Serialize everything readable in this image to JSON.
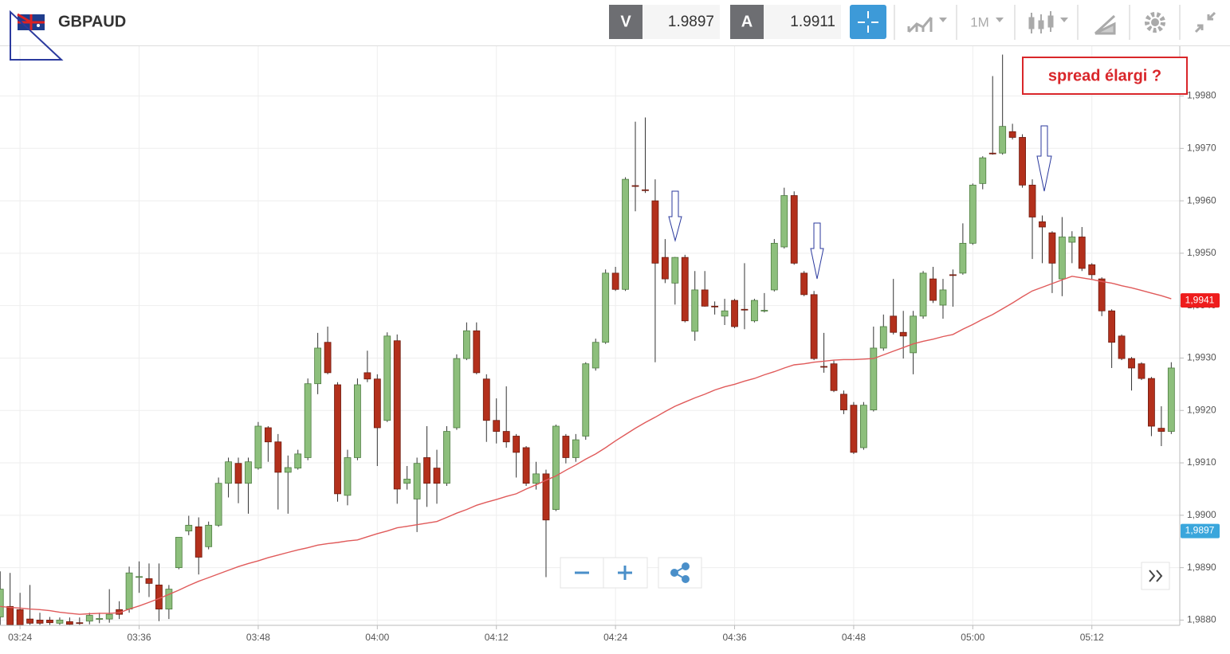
{
  "toolbar": {
    "symbol": "GBPAUD",
    "bid_label": "V",
    "bid": "1.9897",
    "ask_label": "A",
    "ask": "1.9911",
    "timeframe": "1M"
  },
  "chart_data": {
    "type": "candlestick",
    "annotation": "spread élargi ?",
    "categories": [
      null,
      null,
      "03:24",
      null,
      null,
      null,
      null,
      null,
      null,
      null,
      null,
      null,
      null,
      null,
      "03:36",
      null,
      null,
      null,
      null,
      null,
      null,
      null,
      null,
      null,
      null,
      null,
      "03:48",
      null,
      null,
      null,
      null,
      null,
      null,
      null,
      null,
      null,
      null,
      null,
      "04:00",
      null,
      null,
      null,
      null,
      null,
      null,
      null,
      null,
      null,
      null,
      null,
      "04:12",
      null,
      null,
      null,
      null,
      null,
      null,
      null,
      null,
      null,
      null,
      null,
      "04:24",
      null,
      null,
      null,
      null,
      null,
      null,
      null,
      null,
      null,
      null,
      null,
      "04:36",
      null,
      null,
      null,
      null,
      null,
      null,
      null,
      null,
      null,
      null,
      null,
      "04:48",
      null,
      null,
      null,
      null,
      null,
      null,
      null,
      null,
      null,
      null,
      null,
      "05:00",
      null,
      null,
      null,
      null,
      null,
      null,
      null,
      null,
      null,
      null,
      null,
      "05:12",
      null,
      null,
      null,
      null,
      null,
      null,
      null,
      null
    ],
    "open": [
      1.98806,
      1.98826,
      1.9882,
      1.98802,
      1.988,
      1.988,
      1.98794,
      1.98797,
      1.98795,
      1.98798,
      1.98802,
      1.98802,
      1.9882,
      1.98821,
      1.98882,
      1.98879,
      1.98867,
      1.98821,
      1.989,
      1.9897,
      1.98978,
      1.9894,
      1.98981,
      1.99061,
      1.99099,
      1.99061,
      1.9909,
      1.99167,
      1.9914,
      1.99082,
      1.9909,
      1.9911,
      1.99251,
      1.9933,
      1.99249,
      1.99038,
      1.9911,
      1.99272,
      1.9926,
      1.99181,
      1.99333,
      1.99061,
      1.99031,
      1.9911,
      1.9909,
      1.99061,
      1.99167,
      1.99299,
      1.99352,
      1.9926,
      1.99181,
      1.9916,
      1.99151,
      1.99129,
      1.99061,
      1.99079,
      1.99011,
      1.99151,
      1.9911,
      1.99151,
      1.99281,
      1.9933,
      1.99462,
      1.99431,
      1.99629,
      1.99621,
      1.996,
      1.99492,
      1.99443,
      1.99492,
      1.99351,
      1.9943,
      1.99399,
      1.9938,
      1.9941,
      1.99393,
      1.99371,
      1.9939,
      1.9943,
      1.99512,
      1.9961,
      1.99462,
      1.99421,
      1.99284,
      1.99289,
      1.99231,
      1.9921,
      1.99129,
      1.99201,
      1.99319,
      1.9938,
      1.99349,
      1.9931,
      1.9938,
      1.99451,
      1.99401,
      1.99459,
      1.99462,
      1.99519,
      1.99633,
      1.99691,
      1.99691,
      1.99732,
      1.99721,
      1.9963,
      1.9956,
      1.99539,
      1.99451,
      1.99521,
      1.99531,
      1.99478,
      1.99451,
      1.9939,
      1.99342,
      1.99299,
      1.99289,
      1.99261,
      1.99166,
      1.9916
    ],
    "high": [
      1.98893,
      1.9889,
      1.98852,
      1.98867,
      1.98814,
      1.98806,
      1.98805,
      1.98805,
      1.98805,
      1.98814,
      1.98814,
      1.98859,
      1.98836,
      1.98902,
      1.98912,
      1.98908,
      1.98908,
      1.98867,
      1.98958,
      1.98999,
      1.98996,
      1.98988,
      1.99072,
      1.9911,
      1.9911,
      1.9911,
      1.99178,
      1.9917,
      1.99155,
      1.99114,
      1.99125,
      1.99261,
      1.99348,
      1.9936,
      1.99254,
      1.99125,
      1.99261,
      1.99314,
      1.99269,
      1.99349,
      1.99345,
      1.99094,
      1.9911,
      1.9917,
      1.99125,
      1.9917,
      1.99307,
      1.99368,
      1.99368,
      1.99269,
      1.99223,
      1.99246,
      1.99155,
      1.99132,
      1.99102,
      1.99087,
      1.99173,
      1.99155,
      1.99155,
      1.99292,
      1.99337,
      1.99469,
      1.99474,
      1.99645,
      1.99751,
      1.99759,
      1.99641,
      1.99527,
      1.99493,
      1.99497,
      1.99466,
      1.99466,
      1.99408,
      1.99413,
      1.99413,
      1.99481,
      1.99413,
      1.99424,
      1.99527,
      1.99625,
      1.99618,
      1.99466,
      1.99428,
      1.99348,
      1.99295,
      1.99238,
      1.99216,
      1.99216,
      1.9936,
      1.99383,
      1.99451,
      1.9939,
      1.9939,
      1.99466,
      1.99474,
      1.99451,
      1.99469,
      1.99557,
      1.99633,
      1.99685,
      1.99838,
      1.99879,
      1.99747,
      1.99727,
      1.99641,
      1.99572,
      1.99542,
      1.99569,
      1.99542,
      1.9955,
      1.99481,
      1.99454,
      1.99393,
      1.99345,
      1.99302,
      1.99292,
      1.99264,
      1.99208,
      1.99292
    ],
    "low": [
      1.98791,
      1.98791,
      1.98791,
      1.98791,
      1.98791,
      1.98791,
      1.98791,
      1.98791,
      1.98791,
      1.98792,
      1.98794,
      1.98795,
      1.98802,
      1.98814,
      1.98852,
      1.98844,
      1.98798,
      1.98802,
      1.98897,
      1.98962,
      1.98887,
      1.98935,
      1.98978,
      1.99034,
      1.99023,
      1.99003,
      1.99087,
      1.99102,
      1.99011,
      1.99003,
      1.99087,
      1.99105,
      1.99231,
      1.99269,
      1.99026,
      1.99019,
      1.99105,
      1.99254,
      1.99094,
      1.99178,
      1.99022,
      1.99049,
      1.98968,
      1.99016,
      1.99022,
      1.99056,
      1.99163,
      1.99296,
      1.99269,
      1.9914,
      1.99137,
      1.99129,
      1.99072,
      1.99056,
      1.99049,
      1.98882,
      1.99008,
      1.99099,
      1.99102,
      1.99144,
      1.99276,
      1.99327,
      1.99428,
      1.99428,
      1.9958,
      1.99615,
      1.99292,
      1.99443,
      1.99402,
      1.99368,
      1.99333,
      1.99398,
      1.99383,
      1.99363,
      1.99357,
      1.99355,
      1.99368,
      1.99387,
      1.99427,
      1.99509,
      1.99478,
      1.99418,
      1.99296,
      1.99272,
      1.99235,
      1.99193,
      1.99117,
      1.99125,
      1.99198,
      1.99314,
      1.99345,
      1.99299,
      1.99269,
      1.99375,
      1.99405,
      1.99375,
      1.99398,
      1.99459,
      1.99516,
      1.99622,
      1.99688,
      1.99688,
      1.99717,
      1.99625,
      1.99489,
      1.99481,
      1.99424,
      1.99418,
      1.99481,
      1.99466,
      1.99451,
      1.9938,
      1.99281,
      1.99296,
      1.99238,
      1.99258,
      1.99151,
      1.99132,
      1.99155
    ],
    "close": [
      1.98859,
      1.98791,
      1.98791,
      1.98794,
      1.98794,
      1.98795,
      1.988,
      1.98792,
      1.98794,
      1.98809,
      1.98803,
      1.98811,
      1.98811,
      1.9889,
      1.98883,
      1.9887,
      1.98821,
      1.98859,
      1.98958,
      1.98981,
      1.9892,
      1.98981,
      1.99061,
      1.99102,
      1.99061,
      1.99102,
      1.9917,
      1.9914,
      1.99082,
      1.99091,
      1.99117,
      1.99251,
      1.99319,
      1.99272,
      1.99041,
      1.9911,
      1.99249,
      1.9926,
      1.99167,
      1.99342,
      1.9905,
      1.99069,
      1.99099,
      1.99061,
      1.99061,
      1.9916,
      1.99299,
      1.99352,
      1.99272,
      1.99181,
      1.9916,
      1.9914,
      1.9912,
      1.99061,
      1.99079,
      1.98991,
      1.9917,
      1.9911,
      1.99144,
      1.99289,
      1.9933,
      1.99462,
      1.99431,
      1.99641,
      1.99628,
      1.9962,
      1.99481,
      1.99451,
      1.99492,
      1.99371,
      1.9943,
      1.99399,
      1.99398,
      1.9939,
      1.9936,
      1.99392,
      1.9941,
      1.99391,
      1.99519,
      1.9961,
      1.99481,
      1.99421,
      1.99299,
      1.99283,
      1.99238,
      1.99201,
      1.9912,
      1.9921,
      1.99319,
      1.9936,
      1.99349,
      1.99342,
      1.9938,
      1.99462,
      1.9941,
      1.9943,
      1.99458,
      1.99519,
      1.9963,
      1.99682,
      1.9969,
      1.99742,
      1.99721,
      1.9963,
      1.99569,
      1.9955,
      1.99481,
      1.99531,
      1.99531,
      1.99471,
      1.99459,
      1.9939,
      1.9933,
      1.99299,
      1.99281,
      1.99261,
      1.9917,
      1.9916,
      1.99281
    ],
    "up_color": "#8dbf7c",
    "down_color": "#b3301c",
    "ma": {
      "color": "#e05a5a",
      "values": [
        1.98826,
        1.98824,
        1.98823,
        1.98821,
        1.9882,
        1.98818,
        1.98815,
        1.98813,
        1.98811,
        1.98812,
        1.98813,
        1.98813,
        1.98814,
        1.98821,
        1.98827,
        1.98834,
        1.98841,
        1.98849,
        1.98857,
        1.98866,
        1.98874,
        1.98881,
        1.98888,
        1.98895,
        1.98902,
        1.98908,
        1.98913,
        1.98919,
        1.98924,
        1.98929,
        1.98934,
        1.98938,
        1.98943,
        1.98946,
        1.98948,
        1.98951,
        1.98953,
        1.98959,
        1.98965,
        1.9897,
        1.98976,
        1.98979,
        1.98982,
        1.98985,
        1.98988,
        1.98996,
        1.99004,
        1.99011,
        1.99019,
        1.99025,
        1.9903,
        1.99036,
        1.99041,
        1.9905,
        1.99058,
        1.99067,
        1.99075,
        1.99086,
        1.99096,
        1.99107,
        1.99117,
        1.99129,
        1.99142,
        1.99154,
        1.99166,
        1.99177,
        1.99187,
        1.99198,
        1.99208,
        1.99216,
        1.99224,
        1.99231,
        1.99239,
        1.99245,
        1.9925,
        1.99256,
        1.99261,
        1.99268,
        1.99274,
        1.99281,
        1.99287,
        1.99289,
        1.99292,
        1.99294,
        1.99296,
        1.99297,
        1.99297,
        1.99298,
        1.99299,
        1.99306,
        1.99313,
        1.9932,
        1.99327,
        1.99332,
        1.99336,
        1.99341,
        1.99345,
        1.99355,
        1.99364,
        1.99374,
        1.99383,
        1.99394,
        1.99405,
        1.99417,
        1.99428,
        1.99435,
        1.99442,
        1.99449,
        1.99456,
        1.99453,
        1.9945,
        1.99446,
        1.99443,
        1.99438,
        1.99434,
        1.99429,
        1.99424,
        1.99419,
        1.99413
      ]
    },
    "ylim": [
      1.9879,
      1.99895
    ],
    "yticks": [
      {
        "value": 1.988,
        "label": "1,9880"
      },
      {
        "value": 1.989,
        "label": "1,9890"
      },
      {
        "value": 1.99,
        "label": "1,9900"
      },
      {
        "value": 1.991,
        "label": "1,9910"
      },
      {
        "value": 1.992,
        "label": "1,9920"
      },
      {
        "value": 1.993,
        "label": "1,9930"
      },
      {
        "value": 1.994,
        "label": "1,9940"
      },
      {
        "value": 1.995,
        "label": "1,9950"
      },
      {
        "value": 1.996,
        "label": "1,9960"
      },
      {
        "value": 1.997,
        "label": "1,9970"
      },
      {
        "value": 1.998,
        "label": "1,9980"
      }
    ],
    "price_markers": [
      {
        "value": 1.9941,
        "label": "1,9941",
        "color": "#ee1c1c"
      },
      {
        "value": 1.9897,
        "label": "1,9897",
        "color": "#3aa6dc"
      }
    ],
    "grid": true
  }
}
